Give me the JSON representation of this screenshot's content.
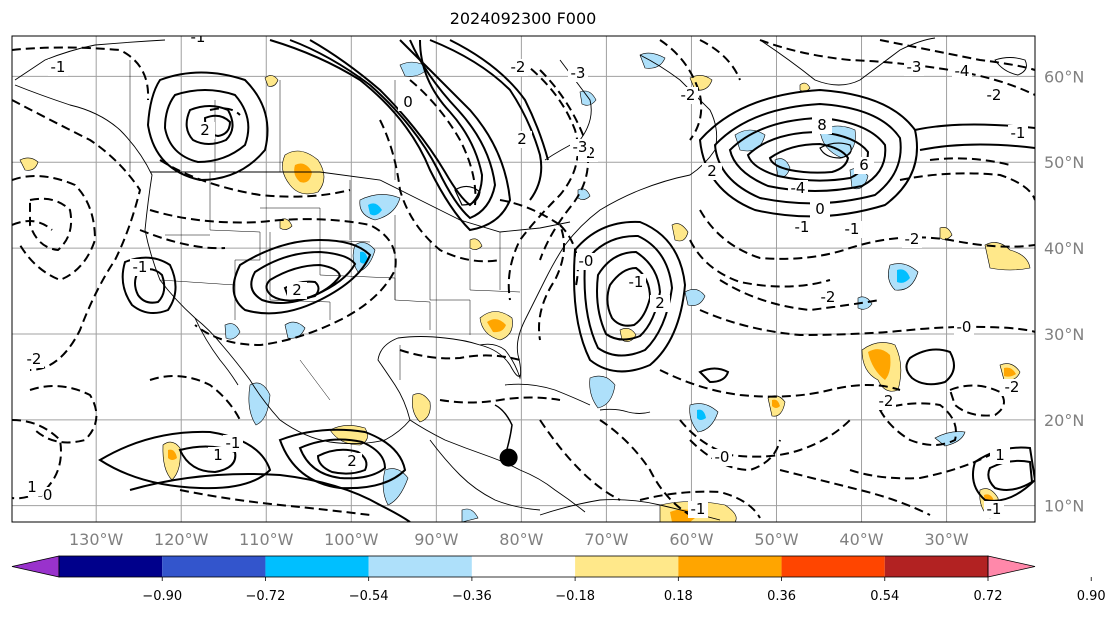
{
  "title": "2024092300 F000",
  "lon_labels": [
    "130°W",
    "120°W",
    "110°W",
    "100°W",
    "90°W",
    "80°W",
    "70°W",
    "60°W",
    "50°W",
    "40°W",
    "30°W"
  ],
  "lat_labels": [
    "60°N",
    "50°N",
    "40°N",
    "30°N",
    "20°N",
    "10°N"
  ],
  "colorbar": {
    "colors": [
      "#9932cc",
      "#00008b",
      "#3355cc",
      "#00bfff",
      "#aee0fa",
      "#ffffff",
      "#ffe88a",
      "#ffa500",
      "#ff4500",
      "#b22222",
      "#ff88aa"
    ],
    "tick_labels": [
      "−0.90",
      "−0.72",
      "−0.54",
      "−0.36",
      "−0.18",
      "0.18",
      "0.36",
      "0.54",
      "0.72",
      "0.90"
    ]
  },
  "contour_labels": [
    "-1",
    "-1",
    "-1",
    "-0",
    "2",
    "2",
    "2",
    "0",
    "2",
    "8",
    "6",
    "-4",
    "-3",
    "-2",
    "-2",
    "2",
    "-2",
    "-1",
    "2",
    "1",
    "-1",
    "-1",
    "-4",
    "-3",
    "-2",
    "-2",
    "-2",
    "-1",
    "0",
    "-1",
    "-2",
    "-2",
    "-1",
    "-2",
    "-0",
    "-0",
    "-3",
    "1",
    "1",
    "-0",
    "-1"
  ],
  "marker": {
    "lon": -81.5,
    "lat": 15.6,
    "color": "#000000"
  }
}
